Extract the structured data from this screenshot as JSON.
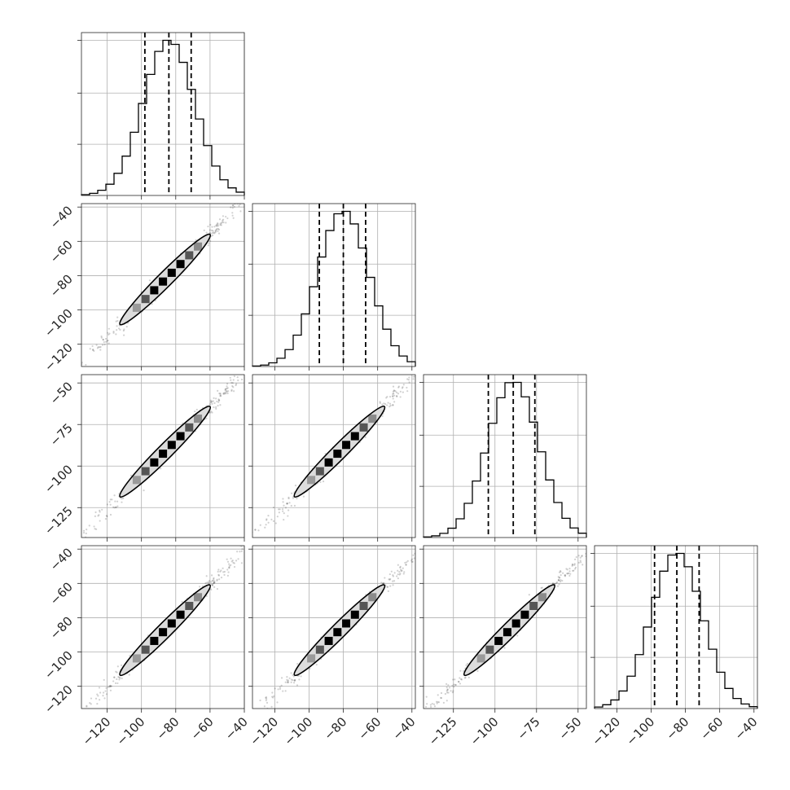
{
  "chart_data": {
    "type": "corner",
    "grid": true,
    "dims": [
      {
        "range": [
          -135,
          -40
        ],
        "ticks": [
          -120,
          -100,
          -80,
          -60,
          -40
        ],
        "mean": -84,
        "std": 15,
        "q": [
          -98,
          -84,
          -71
        ]
      },
      {
        "range": [
          -133,
          -38
        ],
        "ticks": [
          -120,
          -100,
          -80,
          -60,
          -40
        ],
        "mean": -80,
        "std": 15,
        "q": [
          -94,
          -80,
          -67
        ]
      },
      {
        "range": [
          -143,
          -45
        ],
        "ticks": [
          -125,
          -100,
          -75,
          -50
        ],
        "mean": -89,
        "std": 15.5,
        "q": [
          -104,
          -89,
          -76
        ]
      },
      {
        "range": [
          -133,
          -38
        ],
        "ticks": [
          -120,
          -100,
          -80,
          -60,
          -40
        ],
        "mean": -85,
        "std": 15,
        "q": [
          -98,
          -85,
          -72
        ]
      }
    ],
    "histogram_bins": 20,
    "correlation": 0.995
  }
}
